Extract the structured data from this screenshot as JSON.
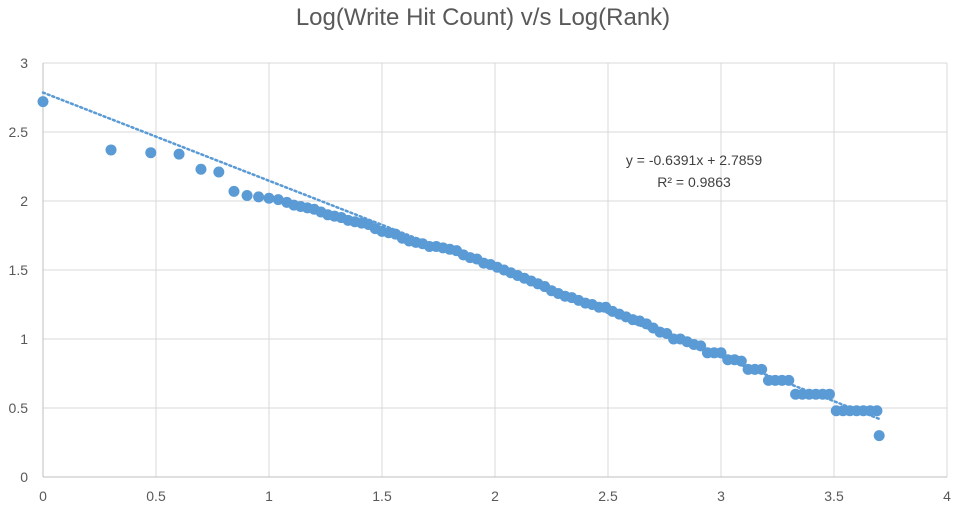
{
  "chart_data": {
    "type": "scatter",
    "title": "Log(Write Hit Count) v/s Log(Rank)",
    "xlabel": "",
    "ylabel": "",
    "xlim": [
      0,
      4
    ],
    "ylim": [
      0,
      3
    ],
    "x_ticks": [
      "0",
      "0.5",
      "1",
      "1.5",
      "2",
      "2.5",
      "3",
      "3.5",
      "4"
    ],
    "y_ticks": [
      "0",
      "0.5",
      "1",
      "1.5",
      "2",
      "2.5",
      "3"
    ],
    "grid": true,
    "legend": "none",
    "marker_color": "#5B9BD5",
    "trendline": {
      "slope": -0.6391,
      "intercept": 2.7859,
      "x_range": [
        0,
        3.7
      ],
      "equation": "y = -0.6391x + 2.7859",
      "r_squared": "R² = 0.9863",
      "color": "#5B9BD5"
    },
    "series": [
      {
        "points": [
          [
            0,
            2.72
          ],
          [
            0.301,
            2.37
          ],
          [
            0.477,
            2.35
          ],
          [
            0.602,
            2.34
          ],
          [
            0.699,
            2.23
          ],
          [
            0.778,
            2.21
          ],
          [
            0.845,
            2.07
          ],
          [
            0.903,
            2.04
          ],
          [
            0.954,
            2.03
          ],
          [
            1.0,
            2.02
          ],
          [
            1.041,
            2.01
          ],
          [
            1.079,
            1.99
          ],
          [
            1.11,
            1.97
          ],
          [
            1.14,
            1.96
          ],
          [
            1.17,
            1.95
          ],
          [
            1.2,
            1.94
          ],
          [
            1.23,
            1.92
          ],
          [
            1.26,
            1.9
          ],
          [
            1.29,
            1.89
          ],
          [
            1.32,
            1.88
          ],
          [
            1.35,
            1.86
          ],
          [
            1.38,
            1.85
          ],
          [
            1.41,
            1.84
          ],
          [
            1.44,
            1.83
          ],
          [
            1.47,
            1.8
          ],
          [
            1.5,
            1.78
          ],
          [
            1.53,
            1.77
          ],
          [
            1.56,
            1.76
          ],
          [
            1.59,
            1.73
          ],
          [
            1.62,
            1.71
          ],
          [
            1.65,
            1.7
          ],
          [
            1.68,
            1.69
          ],
          [
            1.71,
            1.67
          ],
          [
            1.74,
            1.67
          ],
          [
            1.77,
            1.66
          ],
          [
            1.8,
            1.65
          ],
          [
            1.83,
            1.64
          ],
          [
            1.86,
            1.61
          ],
          [
            1.89,
            1.59
          ],
          [
            1.92,
            1.58
          ],
          [
            1.95,
            1.55
          ],
          [
            1.98,
            1.54
          ],
          [
            2.01,
            1.52
          ],
          [
            2.04,
            1.5
          ],
          [
            2.07,
            1.48
          ],
          [
            2.1,
            1.46
          ],
          [
            2.13,
            1.44
          ],
          [
            2.16,
            1.42
          ],
          [
            2.19,
            1.4
          ],
          [
            2.22,
            1.38
          ],
          [
            2.25,
            1.35
          ],
          [
            2.28,
            1.33
          ],
          [
            2.31,
            1.31
          ],
          [
            2.34,
            1.3
          ],
          [
            2.37,
            1.28
          ],
          [
            2.4,
            1.26
          ],
          [
            2.43,
            1.25
          ],
          [
            2.46,
            1.23
          ],
          [
            2.49,
            1.23
          ],
          [
            2.52,
            1.2
          ],
          [
            2.55,
            1.18
          ],
          [
            2.58,
            1.16
          ],
          [
            2.61,
            1.14
          ],
          [
            2.64,
            1.13
          ],
          [
            2.67,
            1.11
          ],
          [
            2.7,
            1.08
          ],
          [
            2.73,
            1.05
          ],
          [
            2.76,
            1.04
          ],
          [
            2.79,
            1.0
          ],
          [
            2.82,
            1.0
          ],
          [
            2.85,
            0.98
          ],
          [
            2.88,
            0.96
          ],
          [
            2.91,
            0.95
          ],
          [
            2.94,
            0.9
          ],
          [
            2.97,
            0.9
          ],
          [
            3.0,
            0.9
          ],
          [
            3.03,
            0.85
          ],
          [
            3.06,
            0.85
          ],
          [
            3.09,
            0.84
          ],
          [
            3.12,
            0.78
          ],
          [
            3.15,
            0.78
          ],
          [
            3.18,
            0.78
          ],
          [
            3.21,
            0.7
          ],
          [
            3.24,
            0.7
          ],
          [
            3.27,
            0.7
          ],
          [
            3.3,
            0.7
          ],
          [
            3.33,
            0.6
          ],
          [
            3.36,
            0.6
          ],
          [
            3.39,
            0.6
          ],
          [
            3.42,
            0.6
          ],
          [
            3.45,
            0.6
          ],
          [
            3.48,
            0.6
          ],
          [
            3.51,
            0.48
          ],
          [
            3.54,
            0.48
          ],
          [
            3.57,
            0.48
          ],
          [
            3.6,
            0.48
          ],
          [
            3.63,
            0.48
          ],
          [
            3.66,
            0.48
          ],
          [
            3.69,
            0.48
          ],
          [
            3.7,
            0.3
          ]
        ]
      }
    ]
  }
}
